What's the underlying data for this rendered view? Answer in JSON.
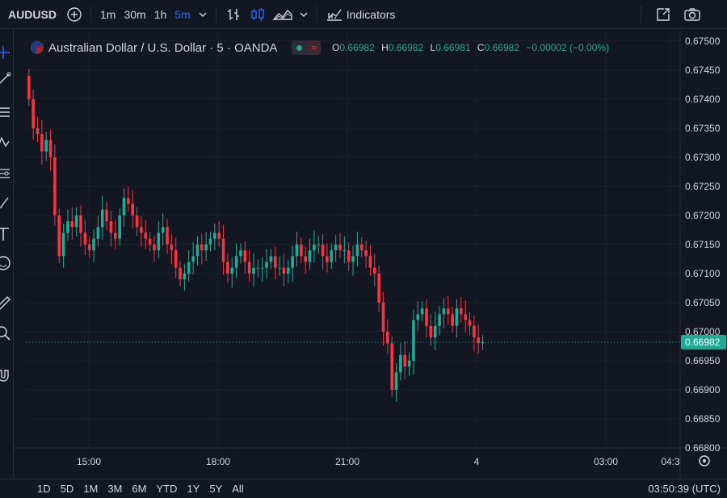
{
  "toolbar": {
    "symbol": "AUDUSD",
    "timeframes": [
      "1m",
      "30m",
      "1h",
      "5m"
    ],
    "active_timeframe": "5m",
    "indicators_label": "Indicators"
  },
  "legend": {
    "title": "Australian Dollar / U.S. Dollar · 5 · OANDA",
    "wave_glyph": "≈",
    "o_key": "O",
    "o_val": "0.66982",
    "h_key": "H",
    "h_val": "0.66982",
    "l_key": "L",
    "l_val": "0.66981",
    "c_key": "C",
    "c_val": "0.66982",
    "change": "−0.00002 (−0.00%)"
  },
  "bottom": {
    "ranges": [
      "1D",
      "5D",
      "1M",
      "3M",
      "6M",
      "YTD",
      "1Y",
      "5Y",
      "All"
    ],
    "clock": "03:50:39 (UTC)"
  },
  "colors": {
    "bg": "#131722",
    "up": "#22ab94",
    "down": "#f23645",
    "grid": "#1e222d",
    "text": "#d1d4dc"
  },
  "chart_data": {
    "type": "candlestick",
    "price_axis_labels": [
      "0.67500",
      "0.67450",
      "0.67400",
      "0.67350",
      "0.67300",
      "0.67250",
      "0.67200",
      "0.67150",
      "0.67100",
      "0.67050",
      "0.67000",
      "0.66950",
      "0.66900",
      "0.66850",
      "0.66800"
    ],
    "ylim": [
      0.668,
      0.67515
    ],
    "time_labels": [
      "15:00",
      "18:00",
      "21:00",
      "4",
      "03:00",
      "04:3"
    ],
    "last_price": "0.66982",
    "last_price_value": 0.66982,
    "closes": [
      0.674,
      0.6735,
      0.6734,
      0.6731,
      0.6733,
      0.673,
      0.672,
      0.6713,
      0.6717,
      0.6719,
      0.6718,
      0.672,
      0.6717,
      0.6715,
      0.6714,
      0.6716,
      0.6718,
      0.6721,
      0.6719,
      0.6717,
      0.6716,
      0.672,
      0.6723,
      0.6722,
      0.672,
      0.6718,
      0.6717,
      0.6716,
      0.6715,
      0.6714,
      0.6717,
      0.6718,
      0.6715,
      0.6714,
      0.6711,
      0.6709,
      0.671,
      0.6712,
      0.6713,
      0.6715,
      0.6714,
      0.6715,
      0.6716,
      0.6717,
      0.6716,
      0.6712,
      0.671,
      0.6711,
      0.6713,
      0.6714,
      0.6712,
      0.671,
      0.6711,
      0.6711,
      0.6711,
      0.6712,
      0.6713,
      0.6711,
      0.6711,
      0.671,
      0.6711,
      0.6713,
      0.6715,
      0.6713,
      0.6712,
      0.6714,
      0.6715,
      0.6715,
      0.6713,
      0.6712,
      0.6714,
      0.6715,
      0.6714,
      0.6714,
      0.6712,
      0.6713,
      0.6715,
      0.6714,
      0.6713,
      0.6711,
      0.671,
      0.6705,
      0.67,
      0.6698,
      0.669,
      0.6693,
      0.6696,
      0.6694,
      0.6695,
      0.6702,
      0.6703,
      0.6704,
      0.6701,
      0.6699,
      0.6701,
      0.6703,
      0.6704,
      0.6703,
      0.6701,
      0.6704,
      0.6703,
      0.6702,
      0.6701,
      0.6699,
      0.6698,
      0.66982
    ],
    "opens": [
      0.6744,
      0.674,
      0.6735,
      0.6734,
      0.6731,
      0.6733,
      0.673,
      0.672,
      0.6713,
      0.6717,
      0.6719,
      0.6718,
      0.672,
      0.6717,
      0.6715,
      0.6714,
      0.6716,
      0.6718,
      0.6721,
      0.6719,
      0.6717,
      0.6716,
      0.672,
      0.6723,
      0.6722,
      0.672,
      0.6718,
      0.6717,
      0.6716,
      0.6715,
      0.6714,
      0.6717,
      0.6718,
      0.6715,
      0.6714,
      0.6711,
      0.6709,
      0.671,
      0.6712,
      0.6713,
      0.6715,
      0.6714,
      0.6715,
      0.6716,
      0.6717,
      0.6716,
      0.6712,
      0.671,
      0.6711,
      0.6713,
      0.6714,
      0.6712,
      0.671,
      0.6711,
      0.6711,
      0.6711,
      0.6712,
      0.6713,
      0.6711,
      0.6711,
      0.671,
      0.6711,
      0.6713,
      0.6715,
      0.6713,
      0.6712,
      0.6714,
      0.6715,
      0.6715,
      0.6713,
      0.6712,
      0.6714,
      0.6715,
      0.6714,
      0.6714,
      0.6712,
      0.6713,
      0.6715,
      0.6714,
      0.6713,
      0.6711,
      0.671,
      0.6705,
      0.67,
      0.6698,
      0.669,
      0.6693,
      0.6696,
      0.6694,
      0.6695,
      0.6702,
      0.6703,
      0.6704,
      0.6701,
      0.6699,
      0.6701,
      0.6703,
      0.6704,
      0.6703,
      0.6701,
      0.6704,
      0.6703,
      0.6702,
      0.6701,
      0.6699,
      0.6698
    ]
  }
}
